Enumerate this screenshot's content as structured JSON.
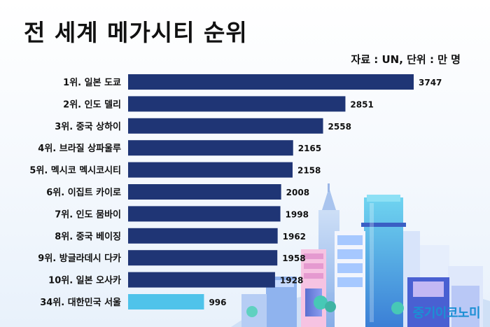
{
  "title": "전 세계 메가시티 순위",
  "unit_note": "자료 : UN, 단위 : 만 명",
  "watermark": "중기이코노미",
  "colors": {
    "bar_primary": "#1f3575",
    "bar_highlight": "#4fc3ea",
    "text": "#111111"
  },
  "chart_data": {
    "type": "bar",
    "orientation": "horizontal",
    "categories": [
      "1위. 일본 도쿄",
      "2위. 인도 델리",
      "3위. 중국 상하이",
      "4위. 브라질 상파울루",
      "5위. 멕시코 멕시코시티",
      "6위. 이집트 카이로",
      "7위. 인도 뭄바이",
      "8위. 중국 베이징",
      "9위. 방글라데시 다카",
      "10위. 일본 오사카",
      "34위. 대한민국 서울"
    ],
    "values": [
      3747,
      2851,
      2558,
      2165,
      2158,
      2008,
      1998,
      1962,
      1958,
      1928,
      996
    ],
    "value_labels": [
      "3747",
      "2851",
      "2558",
      "2165",
      "2158",
      "2008",
      "1998",
      "1962",
      "1958",
      "1928",
      "996"
    ],
    "highlight_index": 10,
    "title": "전 세계 메가시티 순위",
    "xlabel": "",
    "ylabel": "",
    "xlim": [
      0,
      3747
    ],
    "grid": false,
    "legend": "none"
  }
}
